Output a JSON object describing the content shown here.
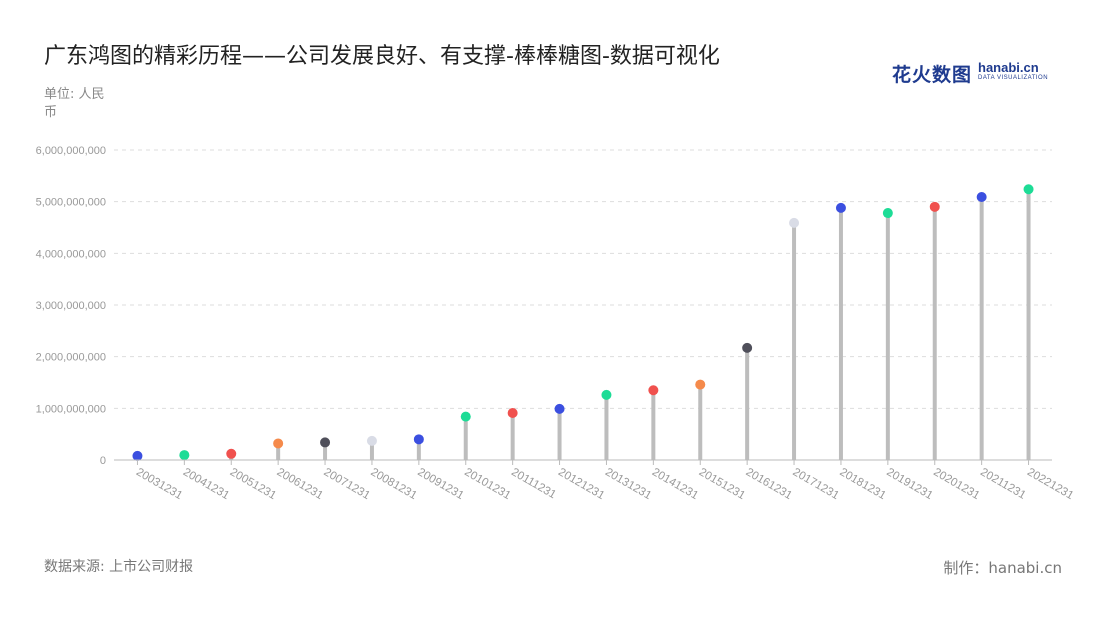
{
  "header": {
    "title": "广东鸿图的精彩历程——公司发展良好、有支撑-棒棒糖图-数据可视化"
  },
  "unit_label": "单位: 人民币",
  "footer": {
    "source": "数据来源: 上市公司财报",
    "credit": "制作：hanabi.cn"
  },
  "logo": {
    "cn": "花火数图",
    "en": "hanabi.cn",
    "tagline": "DATA VISUALIZATION"
  },
  "chart_data": {
    "type": "lollipop",
    "title": "广东鸿图的精彩历程——公司发展良好、有支撑-棒棒糖图-数据可视化",
    "xlabel": "",
    "ylabel": "单位: 人民币",
    "ylim": [
      0,
      6000000000
    ],
    "yticks": [
      0,
      1000000000,
      2000000000,
      3000000000,
      4000000000,
      5000000000,
      6000000000
    ],
    "ytick_labels": [
      "0",
      "1,000,000,000",
      "2,000,000,000",
      "3,000,000,000",
      "4,000,000,000",
      "5,000,000,000",
      "6,000,000,000"
    ],
    "grid": true,
    "categories": [
      "20031231",
      "20041231",
      "20051231",
      "20061231",
      "20071231",
      "20081231",
      "20091231",
      "20101231",
      "20111231",
      "20121231",
      "20131231",
      "20141231",
      "20151231",
      "20161231",
      "20171231",
      "20181231",
      "20191231",
      "20201231",
      "20211231",
      "20221231"
    ],
    "values": [
      80000000,
      95000000,
      120000000,
      320000000,
      340000000,
      370000000,
      400000000,
      840000000,
      910000000,
      990000000,
      1260000000,
      1350000000,
      1460000000,
      2170000000,
      4590000000,
      4880000000,
      4780000000,
      4900000000,
      5090000000,
      5240000000
    ],
    "dot_colors": [
      "#3b4fe0",
      "#1ddc96",
      "#f0514e",
      "#f58a4b",
      "#4f4f5a",
      "#d9dce6",
      "#3b4fe0",
      "#1ddc96",
      "#f0514e",
      "#3b4fe0",
      "#1ddc96",
      "#f0514e",
      "#f58a4b",
      "#4f4f5a",
      "#d9dce6",
      "#3b4fe0",
      "#1ddc96",
      "#f0514e",
      "#3b4fe0",
      "#1ddc96"
    ],
    "stem_color": "#bdbdbd"
  }
}
